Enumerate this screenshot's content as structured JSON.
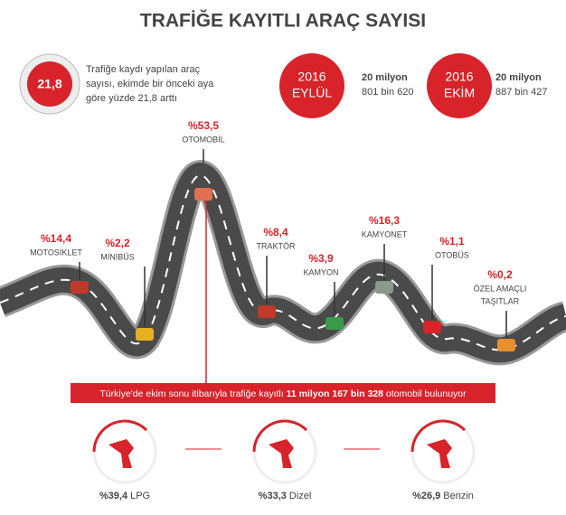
{
  "title": "TRAFİĞE KAYITLI ARAÇ SAYISI",
  "summary": {
    "badge": "21,8",
    "lines": [
      "Trafiğe kaydı yapılan araç",
      "sayısı, ekimde bir önceki aya",
      "göre yüzde 21,8 arttı"
    ]
  },
  "months": [
    {
      "year": "2016",
      "month": "EYLÜL",
      "line1": "20 milyon",
      "line2": "801 bin 620"
    },
    {
      "year": "2016",
      "month": "EKİM",
      "line1": "20 milyon",
      "line2": "887 bin 427"
    }
  ],
  "vehicles": [
    {
      "percent": "%14,4",
      "name": [
        "MOTOSİKLET"
      ]
    },
    {
      "percent": "%2,2",
      "name": [
        "MİNİBÜS"
      ]
    },
    {
      "percent": "%53,5",
      "name": [
        "OTOMOBİL"
      ]
    },
    {
      "percent": "%8,4",
      "name": [
        "TRAKTÖR"
      ]
    },
    {
      "percent": "%3,9",
      "name": [
        "KAMYON"
      ]
    },
    {
      "percent": "%16,3",
      "name": [
        "KAMYONET"
      ]
    },
    {
      "percent": "%1,1",
      "name": [
        "OTOBÜS"
      ]
    },
    {
      "percent": "%0,2",
      "name": [
        "ÖZEL AMAÇLI",
        "TAŞITLAR"
      ]
    }
  ],
  "banner": {
    "before": "Türkiye'de ekim sonu itibarıyla trafiğe kayıtlı",
    "bold": "11 milyon 167 bin 328",
    "after": "otomobil bulunuyor"
  },
  "fuel": [
    {
      "percent": "%39,4",
      "name": "LPG"
    },
    {
      "percent": "%33,3",
      "name": "Dizel"
    },
    {
      "percent": "%26,9",
      "name": "Benzin"
    }
  ]
}
